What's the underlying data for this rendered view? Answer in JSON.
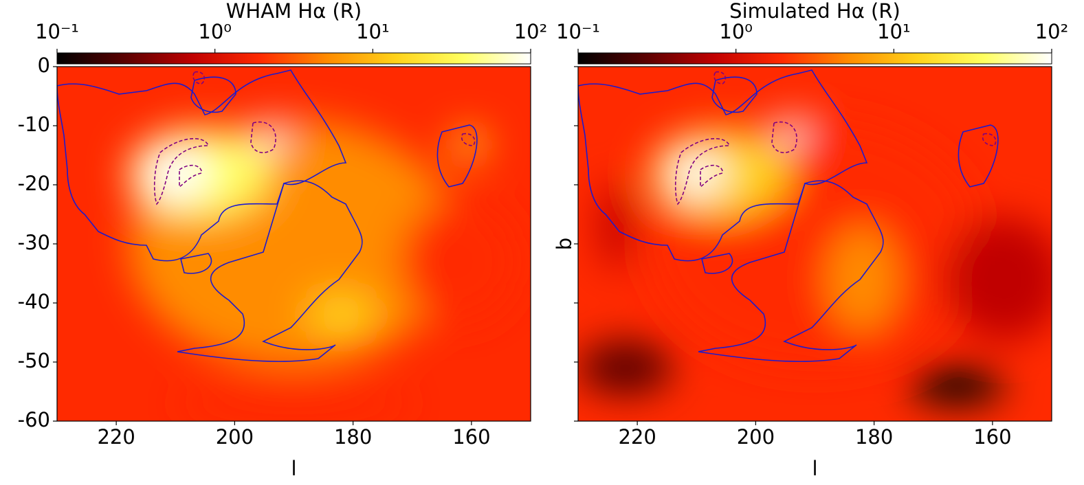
{
  "chart_data": [
    {
      "type": "heatmap",
      "title": "WHAM Hα (R)",
      "xlabel": "l",
      "xlim": [
        230,
        150
      ],
      "xticks": [
        220,
        200,
        180,
        160
      ],
      "ylim": [
        -60,
        0
      ],
      "yticks": [
        0,
        -10,
        -20,
        -30,
        -40,
        -50,
        -60
      ],
      "colorbar": {
        "scale": "log",
        "lim": [
          0.1,
          100
        ],
        "colormap": [
          "#000000",
          "#5a0000",
          "#c00000",
          "#ff2a00",
          "#ff8c00",
          "#ffd21a",
          "#ffff60",
          "#ffffff"
        ],
        "ticks": [
          {
            "value": 0.1,
            "label": "10⁻¹"
          },
          {
            "value": 1,
            "label": "10⁰"
          },
          {
            "value": 10,
            "label": "10¹"
          },
          {
            "value": 100,
            "label": "10²"
          }
        ]
      }
    },
    {
      "type": "heatmap",
      "title": "Simulated Hα (R)",
      "xlabel": "l",
      "ylabel": "b",
      "xlim": [
        230,
        150
      ],
      "xticks": [
        220,
        200,
        180,
        160
      ],
      "ylim": [
        -60,
        0
      ],
      "yticks": [
        0,
        -10,
        -20,
        -30,
        -40,
        -50,
        -60
      ],
      "show_ytick_labels": false,
      "colorbar": {
        "scale": "log",
        "lim": [
          0.1,
          100
        ],
        "colormap": [
          "#000000",
          "#5a0000",
          "#c00000",
          "#ff2a00",
          "#ff8c00",
          "#ffd21a",
          "#ffff60",
          "#ffffff"
        ],
        "ticks": [
          {
            "value": 0.1,
            "label": "10⁻¹"
          },
          {
            "value": 1,
            "label": "10⁰"
          },
          {
            "value": 10,
            "label": "10¹"
          },
          {
            "value": 100,
            "label": "10²"
          }
        ]
      }
    }
  ]
}
